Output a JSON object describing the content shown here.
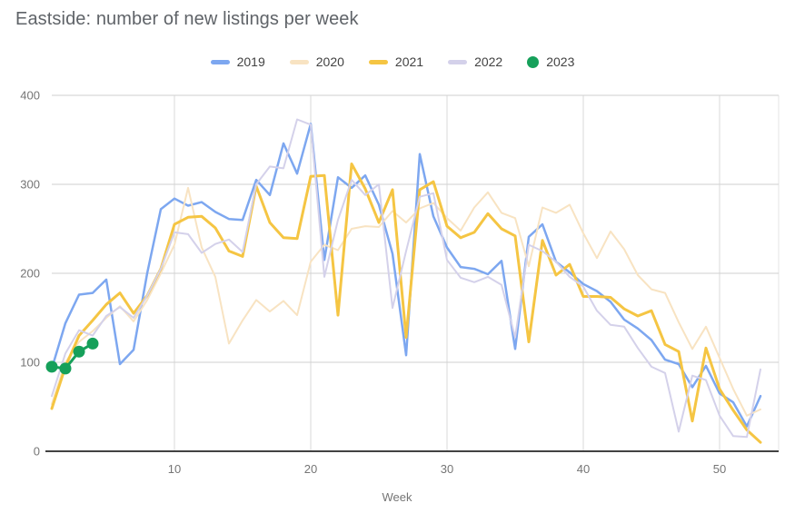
{
  "chart_data": {
    "type": "line",
    "title": "Eastside: number of new listings per week",
    "xlabel": "Week",
    "ylabel": "",
    "x_unit": "week number (1-53)",
    "xticks": [
      10,
      20,
      30,
      40,
      50
    ],
    "yticks": [
      0,
      100,
      200,
      300,
      400
    ],
    "ylim": [
      0,
      400
    ],
    "xlim": [
      1,
      53
    ],
    "grid": true,
    "legend_position": "top",
    "series": [
      {
        "name": "2019",
        "color": "#7da7f0",
        "stroke_width": 2.5,
        "marker": "none",
        "values": [
          93,
          144,
          176,
          178,
          193,
          98,
          114,
          200,
          272,
          284,
          276,
          280,
          269,
          261,
          260,
          305,
          288,
          346,
          312,
          368,
          215,
          308,
          296,
          310,
          277,
          222,
          108,
          334,
          264,
          229,
          207,
          205,
          199,
          214,
          115,
          241,
          255,
          213,
          201,
          188,
          180,
          168,
          148,
          138,
          125,
          103,
          98,
          72,
          96,
          65,
          55,
          28,
          62
        ]
      },
      {
        "name": "2020",
        "color": "#f8e3c2",
        "stroke_width": 2,
        "marker": "none",
        "values": [
          53,
          100,
          123,
          135,
          150,
          163,
          146,
          170,
          200,
          232,
          296,
          229,
          196,
          121,
          147,
          170,
          157,
          169,
          153,
          213,
          232,
          226,
          250,
          253,
          252,
          270,
          257,
          273,
          279,
          262,
          248,
          274,
          291,
          268,
          262,
          208,
          274,
          268,
          277,
          245,
          217,
          247,
          227,
          198,
          182,
          178,
          145,
          115,
          140,
          105,
          70,
          40,
          47
        ]
      },
      {
        "name": "2021",
        "color": "#f5c543",
        "stroke_width": 3,
        "marker": "none",
        "values": [
          48,
          95,
          130,
          147,
          165,
          178,
          155,
          175,
          205,
          255,
          263,
          264,
          251,
          225,
          219,
          298,
          257,
          240,
          239,
          309,
          310,
          153,
          323,
          295,
          257,
          294,
          128,
          294,
          303,
          253,
          240,
          246,
          267,
          250,
          242,
          123,
          237,
          198,
          210,
          174,
          174,
          173,
          160,
          152,
          158,
          120,
          112,
          34,
          116,
          70,
          46,
          24,
          10
        ]
      },
      {
        "name": "2022",
        "color": "#d4d1ea",
        "stroke_width": 2,
        "marker": "none",
        "values": [
          62,
          110,
          136,
          130,
          152,
          162,
          150,
          175,
          205,
          246,
          244,
          223,
          233,
          238,
          224,
          300,
          320,
          318,
          373,
          367,
          196,
          260,
          305,
          288,
          300,
          161,
          225,
          286,
          290,
          215,
          195,
          190,
          196,
          187,
          128,
          232,
          225,
          213,
          196,
          185,
          158,
          142,
          140,
          116,
          95,
          88,
          22,
          85,
          80,
          40,
          17,
          16,
          92
        ]
      },
      {
        "name": "2023",
        "color": "#16a05a",
        "stroke_width": 3,
        "marker": "circle",
        "marker_radius": 6.5,
        "x": [
          1,
          2,
          3,
          4
        ],
        "values": [
          95,
          93,
          112,
          121
        ]
      }
    ]
  }
}
